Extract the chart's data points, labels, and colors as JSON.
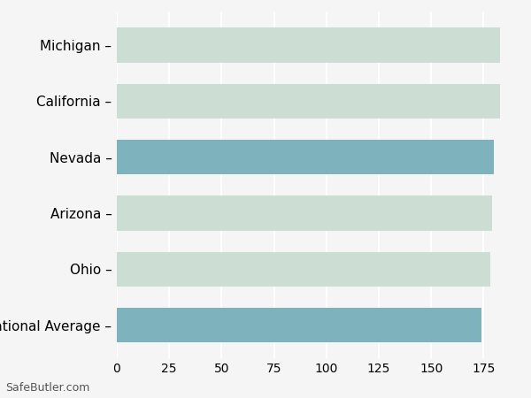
{
  "categories": [
    "Michigan",
    "California",
    "Nevada",
    "Arizona",
    "Ohio",
    "National Average"
  ],
  "values": [
    183,
    183,
    180,
    179,
    178,
    174
  ],
  "bar_colors": [
    "#ccddd4",
    "#ccddd4",
    "#7eb3be",
    "#ccddd4",
    "#ccddd4",
    "#7eb3be"
  ],
  "xlim": [
    0,
    190
  ],
  "xticks": [
    0,
    25,
    50,
    75,
    100,
    125,
    150,
    175
  ],
  "background_color": "#f5f5f5",
  "footer_text": "SafeButler.com",
  "grid_color": "#ffffff",
  "label_fontsize": 11,
  "tick_fontsize": 10,
  "footer_fontsize": 9
}
